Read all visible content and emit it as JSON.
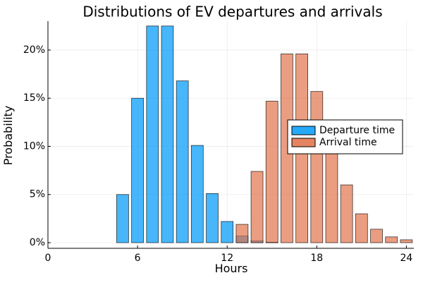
{
  "chart_data": {
    "type": "bar",
    "title": "Distributions of EV departures and arrivals",
    "xlabel": "Hours",
    "ylabel": "Probability",
    "xlim": [
      0,
      24.5
    ],
    "ylim": [
      0,
      0.23
    ],
    "xticks": [
      0,
      6,
      12,
      18,
      24
    ],
    "xtick_labels": [
      "0",
      "6",
      "12",
      "18",
      "24"
    ],
    "yticks": [
      0,
      0.05,
      0.1,
      0.15,
      0.2
    ],
    "ytick_labels": [
      "0%",
      "5%",
      "10%",
      "15%",
      "20%"
    ],
    "grid": true,
    "legend_position": "right",
    "series": [
      {
        "name": "Departure time",
        "color": "#009AFA",
        "x": [
          5,
          6,
          7,
          8,
          9,
          10,
          11,
          12,
          13,
          14,
          15
        ],
        "values": [
          0.05,
          0.15,
          0.225,
          0.225,
          0.168,
          0.101,
          0.051,
          0.022,
          0.007,
          0.002,
          0.0005
        ]
      },
      {
        "name": "Arrival time",
        "color": "#E26F46",
        "x": [
          13,
          14,
          15,
          16,
          17,
          18,
          19,
          20,
          21,
          22,
          23,
          24
        ],
        "values": [
          0.019,
          0.074,
          0.147,
          0.196,
          0.196,
          0.157,
          0.099,
          0.06,
          0.03,
          0.014,
          0.006,
          0.003
        ]
      }
    ]
  }
}
